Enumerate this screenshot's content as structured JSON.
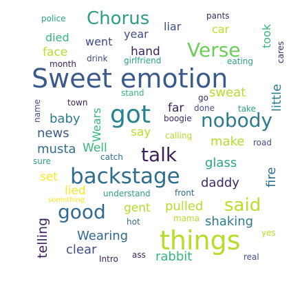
{
  "words": [
    {
      "text": "Sweet emotion",
      "weight": 100,
      "color": "#3b5a8c",
      "rotated": false
    },
    {
      "text": "things",
      "weight": 80,
      "color": "#b5de2b",
      "rotated": false
    },
    {
      "text": "got",
      "weight": 75,
      "color": "#26828e",
      "rotated": false
    },
    {
      "text": "backstage",
      "weight": 72,
      "color": "#2f6d8e",
      "rotated": false
    },
    {
      "text": "talk",
      "weight": 62,
      "color": "#3e1f5a",
      "rotated": false
    },
    {
      "text": "nobody",
      "weight": 60,
      "color": "#2c7a8e",
      "rotated": false
    },
    {
      "text": "good",
      "weight": 60,
      "color": "#30688e",
      "rotated": false
    },
    {
      "text": "Verse",
      "weight": 58,
      "color": "#6ccd5a",
      "rotated": false
    },
    {
      "text": "Chorus",
      "weight": 55,
      "color": "#2f9e88",
      "rotated": false
    },
    {
      "text": "said",
      "weight": 55,
      "color": "#b8de29",
      "rotated": false
    },
    {
      "text": "pulled",
      "weight": 42,
      "color": "#b5de2b",
      "rotated": false
    },
    {
      "text": "daddy",
      "weight": 40,
      "color": "#3b2a6a",
      "rotated": false
    },
    {
      "text": "shaking",
      "weight": 40,
      "color": "#2a7b8e",
      "rotated": false
    },
    {
      "text": "telling",
      "weight": 40,
      "color": "#3e1f5a",
      "rotated": true
    },
    {
      "text": "Wearing",
      "weight": 40,
      "color": "#30688e",
      "rotated": false
    },
    {
      "text": "rabbit",
      "weight": 40,
      "color": "#33b67a",
      "rotated": false
    },
    {
      "text": "glass",
      "weight": 40,
      "color": "#26a584",
      "rotated": false
    },
    {
      "text": "clear",
      "weight": 38,
      "color": "#3e4c8a",
      "rotated": false
    },
    {
      "text": "musta",
      "weight": 40,
      "color": "#2f6d8e",
      "rotated": false
    },
    {
      "text": "baby",
      "weight": 40,
      "color": "#2c7a8e",
      "rotated": false
    },
    {
      "text": "news",
      "weight": 40,
      "color": "#3b5a8c",
      "rotated": false
    },
    {
      "text": "fire",
      "weight": 40,
      "color": "#2f6d8e",
      "rotated": true
    },
    {
      "text": "little",
      "weight": 40,
      "color": "#2c7a8e",
      "rotated": true
    },
    {
      "text": "sweat",
      "weight": 36,
      "color": "#b5de2b",
      "rotated": false
    },
    {
      "text": "make",
      "weight": 36,
      "color": "#b5de2b",
      "rotated": false
    },
    {
      "text": "gent",
      "weight": 36,
      "color": "#b5de2b",
      "rotated": false
    },
    {
      "text": "Well",
      "weight": 36,
      "color": "#35b779",
      "rotated": false
    },
    {
      "text": "set",
      "weight": 36,
      "color": "#fde725",
      "rotated": false
    },
    {
      "text": "lied",
      "weight": 36,
      "color": "#fde725",
      "rotated": false
    },
    {
      "text": "say",
      "weight": 36,
      "color": "#b8de29",
      "rotated": false
    },
    {
      "text": "far",
      "weight": 36,
      "color": "#3e1f5a",
      "rotated": false
    },
    {
      "text": "hand",
      "weight": 36,
      "color": "#3e1f5a",
      "rotated": false
    },
    {
      "text": "face",
      "weight": 36,
      "color": "#b5de2b",
      "rotated": false
    },
    {
      "text": "died",
      "weight": 34,
      "color": "#35b779",
      "rotated": false
    },
    {
      "text": "went",
      "weight": 34,
      "color": "#3e4c8a",
      "rotated": false
    },
    {
      "text": "year",
      "weight": 34,
      "color": "#3e4c8a",
      "rotated": false
    },
    {
      "text": "liar",
      "weight": 34,
      "color": "#3e4c8a",
      "rotated": false
    },
    {
      "text": "car",
      "weight": 34,
      "color": "#b8de29",
      "rotated": false
    },
    {
      "text": "took",
      "weight": 34,
      "color": "#35b779",
      "rotated": true
    },
    {
      "text": "Wears",
      "weight": 34,
      "color": "#35b779",
      "rotated": true
    },
    {
      "text": "pants",
      "weight": 20,
      "color": "#3b2a6a",
      "rotated": false
    },
    {
      "text": "police",
      "weight": 20,
      "color": "#26a584",
      "rotated": false
    },
    {
      "text": "cares",
      "weight": 20,
      "color": "#3b2a6a",
      "rotated": true
    },
    {
      "text": "drink",
      "weight": 20,
      "color": "#3e4c8a",
      "rotated": false
    },
    {
      "text": "month",
      "weight": 20,
      "color": "#3e1f5a",
      "rotated": false
    },
    {
      "text": "girlfriend",
      "weight": 20,
      "color": "#26a584",
      "rotated": false
    },
    {
      "text": "eating",
      "weight": 20,
      "color": "#2f9e88",
      "rotated": false
    },
    {
      "text": "town",
      "weight": 20,
      "color": "#3e1f5a",
      "rotated": false
    },
    {
      "text": "stand",
      "weight": 20,
      "color": "#35b779",
      "rotated": false
    },
    {
      "text": "go",
      "weight": 20,
      "color": "#3b2a6a",
      "rotated": false
    },
    {
      "text": "done",
      "weight": 20,
      "color": "#3e4c8a",
      "rotated": false
    },
    {
      "text": "take",
      "weight": 20,
      "color": "#26a584",
      "rotated": false
    },
    {
      "text": "name",
      "weight": 20,
      "color": "#3e4c8a",
      "rotated": true
    },
    {
      "text": "boogie",
      "weight": 20,
      "color": "#3b2a6a",
      "rotated": false
    },
    {
      "text": "calling",
      "weight": 20,
      "color": "#b8de29",
      "rotated": false
    },
    {
      "text": "road",
      "weight": 20,
      "color": "#3e4c8a",
      "rotated": false
    },
    {
      "text": "catch",
      "weight": 20,
      "color": "#2f6d8e",
      "rotated": false
    },
    {
      "text": "sure",
      "weight": 20,
      "color": "#2f9e88",
      "rotated": false
    },
    {
      "text": "understand",
      "weight": 20,
      "color": "#2f9e88",
      "rotated": false
    },
    {
      "text": "front",
      "weight": 20,
      "color": "#2f6d8e",
      "rotated": false
    },
    {
      "text": "something",
      "weight": 18,
      "color": "#fde725",
      "rotated": false
    },
    {
      "text": "hot",
      "weight": 20,
      "color": "#2f6d8e",
      "rotated": false
    },
    {
      "text": "mama",
      "weight": 20,
      "color": "#b8de29",
      "rotated": false
    },
    {
      "text": "yes",
      "weight": 20,
      "color": "#b5de2b",
      "rotated": false
    },
    {
      "text": "Intro",
      "weight": 20,
      "color": "#3e1f5a",
      "rotated": false
    },
    {
      "text": "ass",
      "weight": 20,
      "color": "#3e1f5a",
      "rotated": false
    },
    {
      "text": "real",
      "weight": 20,
      "color": "#3e4c8a",
      "rotated": false
    }
  ]
}
